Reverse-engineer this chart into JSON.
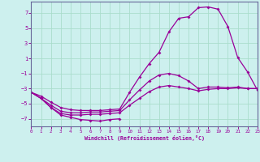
{
  "xlabel": "Windchill (Refroidissement éolien,°C)",
  "bg_color": "#cdf0ee",
  "grid_color": "#aaddcc",
  "line_color": "#990099",
  "x": [
    0,
    1,
    2,
    3,
    4,
    5,
    6,
    7,
    8,
    9,
    10,
    11,
    12,
    13,
    14,
    15,
    16,
    17,
    18,
    19,
    20,
    21,
    22,
    23
  ],
  "line1_x": [
    0,
    1,
    2,
    3,
    4,
    5,
    6,
    7,
    8,
    9
  ],
  "line1_y": [
    -3.5,
    -4.3,
    -5.5,
    -6.5,
    -6.8,
    -7.1,
    -7.2,
    -7.3,
    -7.1,
    -7.0
  ],
  "line2": [
    -3.5,
    -4.3,
    -5.5,
    -6.3,
    -6.5,
    -6.5,
    -6.4,
    -6.4,
    -6.3,
    -6.2,
    -5.2,
    -4.3,
    -3.4,
    -2.8,
    -2.6,
    -2.8,
    -3.0,
    -3.3,
    -3.1,
    -3.0,
    -3.0,
    -2.9,
    -3.0,
    -3.0
  ],
  "line3": [
    -3.5,
    -4.3,
    -5.2,
    -6.0,
    -6.2,
    -6.2,
    -6.1,
    -6.1,
    -6.0,
    -5.9,
    -4.5,
    -3.2,
    -2.0,
    -1.2,
    -1.0,
    -1.3,
    -2.0,
    -3.0,
    -2.8,
    -2.8,
    -2.9,
    -2.8,
    -3.0,
    -3.0
  ],
  "line4": [
    -3.5,
    -4.0,
    -4.8,
    -5.5,
    -5.8,
    -5.9,
    -5.9,
    -5.9,
    -5.8,
    -5.7,
    -3.5,
    -1.5,
    0.3,
    1.8,
    4.5,
    6.3,
    6.5,
    7.7,
    7.8,
    7.5,
    5.2,
    1.1,
    -0.8,
    -3.2
  ],
  "xlim": [
    0,
    23
  ],
  "ylim": [
    -8.0,
    8.5
  ],
  "yticks": [
    -7,
    -5,
    -3,
    -1,
    1,
    3,
    5,
    7
  ],
  "xticks": [
    0,
    1,
    2,
    3,
    4,
    5,
    6,
    7,
    8,
    9,
    10,
    11,
    12,
    13,
    14,
    15,
    16,
    17,
    18,
    19,
    20,
    21,
    22,
    23
  ],
  "markersize": 2.0,
  "linewidth": 0.9
}
